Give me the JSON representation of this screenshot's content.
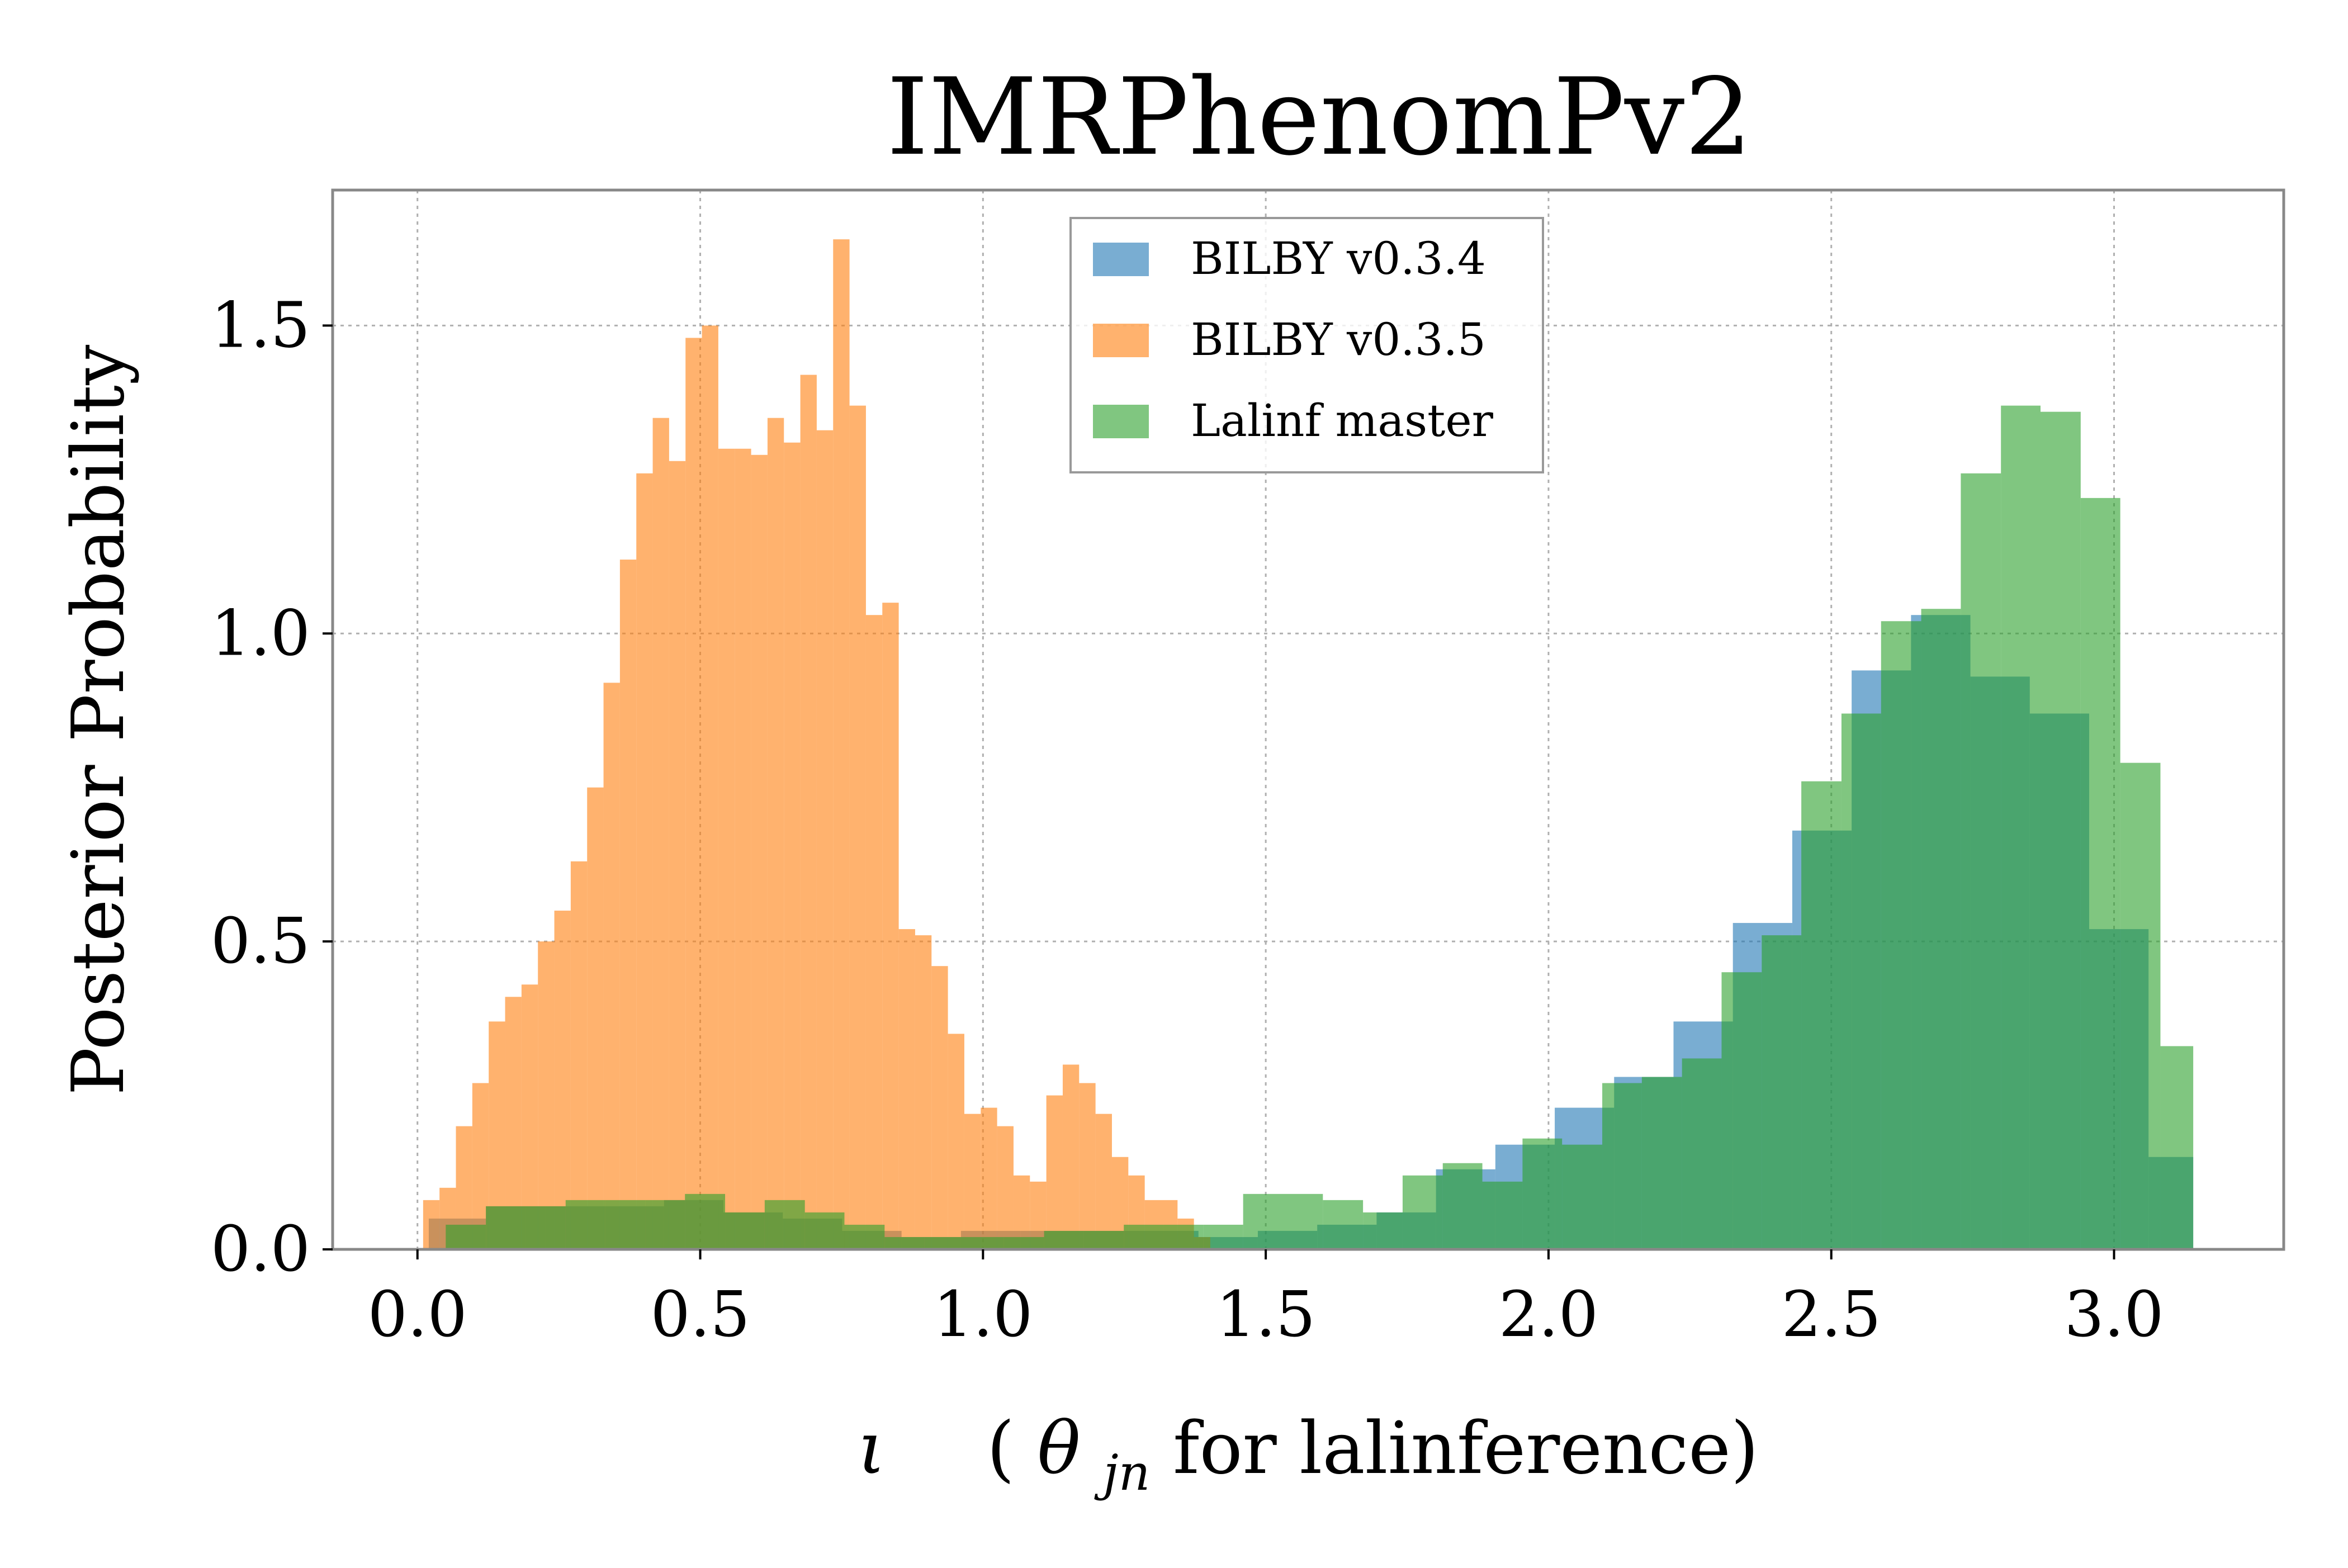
{
  "chart_data": {
    "type": "histogram",
    "title": "IMRPhenomPv2",
    "xlabel": "ι   (θ_jn for lalinference)",
    "xlabel_parts": {
      "iota": "ι",
      "theta": "θ",
      "sub": "jn",
      "suffix": " for lalinference)",
      "open_paren": "("
    },
    "ylabel": "Posterior Probability",
    "xlim": [
      -0.15,
      3.3
    ],
    "ylim": [
      0,
      1.72
    ],
    "xticks": [
      0.0,
      0.5,
      1.0,
      1.5,
      2.0,
      2.5,
      3.0
    ],
    "xtick_labels": [
      "0.0",
      "0.5",
      "1.0",
      "1.5",
      "2.0",
      "2.5",
      "3.0"
    ],
    "yticks": [
      0.0,
      0.5,
      1.0,
      1.5
    ],
    "ytick_labels": [
      "0.0",
      "0.5",
      "1.0",
      "1.5"
    ],
    "grid": true,
    "legend_position": "top-center",
    "series": [
      {
        "name": "BILBY v0.3.4",
        "color": "#1f77b4",
        "bin_edges": [
          0.02,
          0.121,
          0.226,
          0.331,
          0.436,
          0.541,
          0.646,
          0.751,
          0.856,
          0.961,
          1.066,
          1.171,
          1.276,
          1.381,
          1.486,
          1.591,
          1.696,
          1.801,
          1.906,
          2.011,
          2.116,
          2.221,
          2.326,
          2.431,
          2.536,
          2.641,
          2.746,
          2.851,
          2.956,
          3.061,
          3.14
        ],
        "counts": [
          0.05,
          0.07,
          0.07,
          0.07,
          0.08,
          0.06,
          0.05,
          0.03,
          0.02,
          0.03,
          0.03,
          0.03,
          0.03,
          0.02,
          0.03,
          0.04,
          0.06,
          0.13,
          0.17,
          0.23,
          0.28,
          0.37,
          0.53,
          0.68,
          0.94,
          1.03,
          0.93,
          0.87,
          0.52,
          0.15
        ]
      },
      {
        "name": "BILBY v0.3.5",
        "color": "#ff7f0e",
        "bin_edges": [
          0.01,
          0.039,
          0.068,
          0.097,
          0.126,
          0.155,
          0.184,
          0.213,
          0.242,
          0.271,
          0.3,
          0.329,
          0.358,
          0.387,
          0.416,
          0.445,
          0.474,
          0.503,
          0.532,
          0.561,
          0.59,
          0.619,
          0.648,
          0.677,
          0.706,
          0.735,
          0.764,
          0.793,
          0.822,
          0.851,
          0.88,
          0.909,
          0.938,
          0.967,
          0.996,
          1.025,
          1.054,
          1.083,
          1.112,
          1.141,
          1.17,
          1.199,
          1.228,
          1.257,
          1.286,
          1.315,
          1.344,
          1.373,
          1.402
        ],
        "counts": [
          0.08,
          0.1,
          0.2,
          0.27,
          0.37,
          0.41,
          0.43,
          0.5,
          0.55,
          0.63,
          0.75,
          0.92,
          1.12,
          1.26,
          1.35,
          1.28,
          1.48,
          1.5,
          1.3,
          1.3,
          1.29,
          1.35,
          1.31,
          1.42,
          1.33,
          1.64,
          1.37,
          1.03,
          1.05,
          0.52,
          0.51,
          0.46,
          0.35,
          0.22,
          0.23,
          0.2,
          0.12,
          0.11,
          0.25,
          0.3,
          0.27,
          0.22,
          0.15,
          0.12,
          0.08,
          0.08,
          0.05,
          0.02
        ]
      },
      {
        "name": "Lalinf master",
        "color": "#2ca02c",
        "bin_edges": [
          0.05,
          0.121,
          0.191,
          0.262,
          0.332,
          0.403,
          0.473,
          0.544,
          0.614,
          0.685,
          0.755,
          0.826,
          0.896,
          0.967,
          1.037,
          1.108,
          1.178,
          1.249,
          1.319,
          1.39,
          1.46,
          1.531,
          1.601,
          1.672,
          1.742,
          1.813,
          1.883,
          1.954,
          2.024,
          2.095,
          2.165,
          2.236,
          2.306,
          2.377,
          2.447,
          2.518,
          2.588,
          2.659,
          2.729,
          2.8,
          2.87,
          2.941,
          3.011,
          3.082,
          3.14
        ],
        "counts": [
          0.04,
          0.07,
          0.07,
          0.08,
          0.08,
          0.08,
          0.09,
          0.06,
          0.08,
          0.06,
          0.04,
          0.02,
          0.02,
          0.02,
          0.02,
          0.03,
          0.03,
          0.04,
          0.04,
          0.04,
          0.09,
          0.09,
          0.08,
          0.06,
          0.12,
          0.14,
          0.11,
          0.18,
          0.17,
          0.27,
          0.28,
          0.31,
          0.45,
          0.51,
          0.76,
          0.87,
          1.02,
          1.04,
          1.26,
          1.37,
          1.36,
          1.22,
          0.79,
          0.33
        ]
      }
    ]
  }
}
